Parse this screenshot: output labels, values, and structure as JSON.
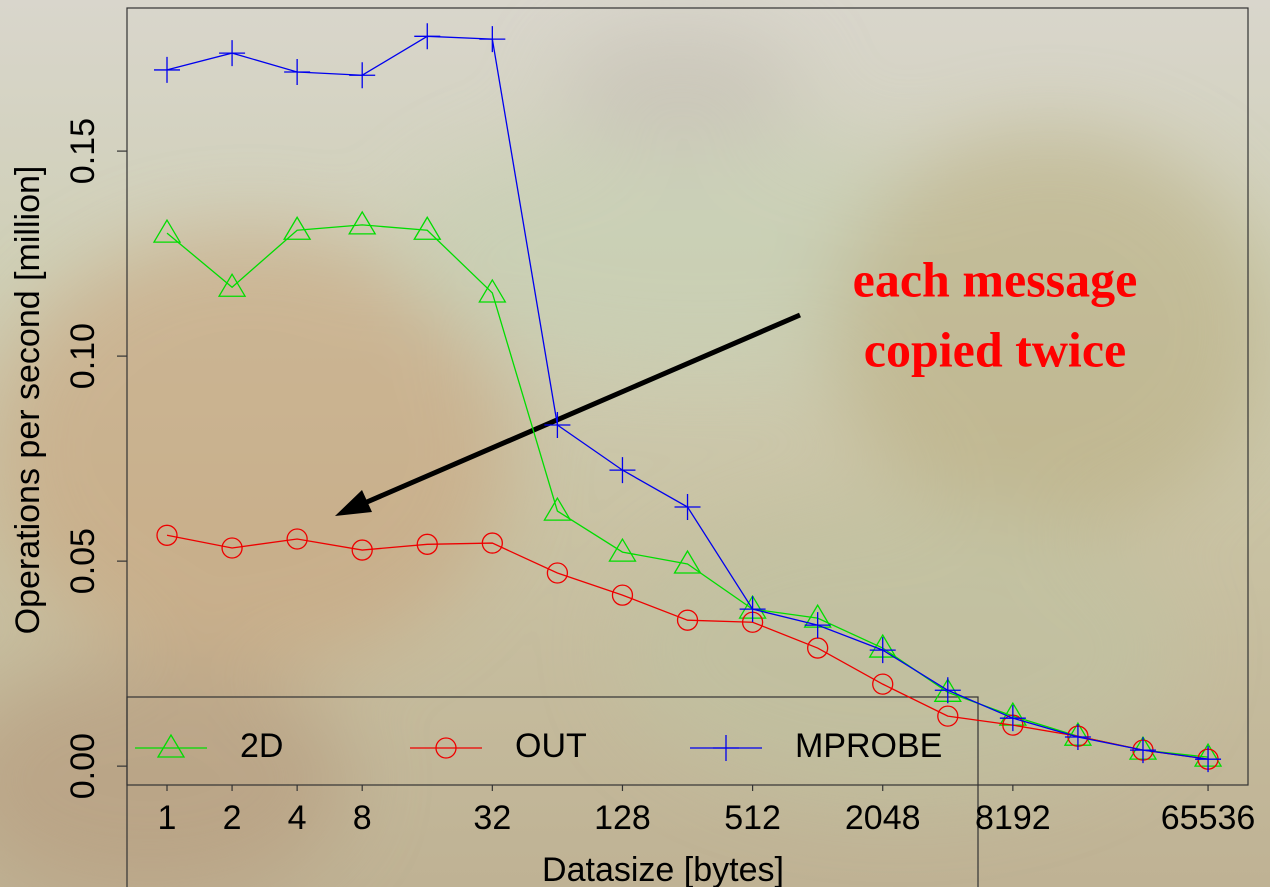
{
  "chart_data": {
    "type": "line",
    "xscale": "log2",
    "x": [
      1,
      2,
      4,
      8,
      16,
      32,
      64,
      128,
      256,
      512,
      1024,
      2048,
      4096,
      8192,
      16384,
      32768,
      65536
    ],
    "xlim": [
      0.653,
      100300
    ],
    "xticks": [
      1,
      2,
      4,
      8,
      32,
      128,
      512,
      2048,
      8192,
      65536
    ],
    "ylim": [
      -0.0046,
      0.1849
    ],
    "yticks": [
      {
        "value": 0,
        "label": "0.00"
      },
      0.05,
      {
        "value": 0.1,
        "label": "0.10"
      },
      0.15
    ],
    "xlabel": "Datasize [bytes]",
    "ylabel": "Operations per second [million]",
    "annotation": [
      "each message",
      "copied twice"
    ],
    "series": [
      {
        "name": "2D",
        "color": "#00dd00",
        "marker": "triangle",
        "values": [
          0.13,
          0.1168,
          0.1307,
          0.132,
          0.1307,
          0.1154,
          0.0622,
          0.0522,
          0.0493,
          0.0383,
          0.0361,
          0.0288,
          0.018,
          0.0122,
          0.0073,
          0.0039,
          0.0022
        ]
      },
      {
        "name": "OUT",
        "color": "#ee0000",
        "marker": "circle",
        "values": [
          0.0563,
          0.0532,
          0.0554,
          0.0527,
          0.0541,
          0.0544,
          0.0471,
          0.0417,
          0.0356,
          0.0351,
          0.0288,
          0.02,
          0.0122,
          0.01,
          0.0073,
          0.0039,
          0.0017
        ]
      },
      {
        "name": "MPROBE",
        "color": "#0000ee",
        "marker": "plus",
        "values": [
          0.1698,
          0.1739,
          0.1693,
          0.1685,
          0.178,
          0.1773,
          0.0832,
          0.0722,
          0.0632,
          0.0383,
          0.0344,
          0.0283,
          0.0185,
          0.0117,
          0.0071,
          0.0039,
          0.0017
        ]
      }
    ]
  }
}
